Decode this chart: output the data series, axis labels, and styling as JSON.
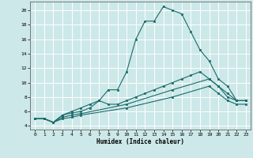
{
  "xlabel": "Humidex (Indice chaleur)",
  "background_color": "#cde8e8",
  "grid_color": "#ffffff",
  "line_color": "#1a6b6b",
  "xlim": [
    -0.5,
    23.5
  ],
  "ylim": [
    3.5,
    21.2
  ],
  "yticks": [
    4,
    6,
    8,
    10,
    12,
    14,
    16,
    18,
    20
  ],
  "xticks": [
    0,
    1,
    2,
    3,
    4,
    5,
    6,
    7,
    8,
    9,
    10,
    11,
    12,
    13,
    14,
    15,
    16,
    17,
    18,
    19,
    20,
    21,
    22,
    23
  ],
  "lines": [
    {
      "x": [
        0,
        1,
        2,
        3,
        4,
        5,
        6,
        7,
        8,
        9,
        10,
        11,
        12,
        13,
        14,
        15,
        16,
        17,
        18,
        19,
        20,
        21,
        22,
        23
      ],
      "y": [
        5.0,
        5.0,
        4.5,
        5.5,
        6.0,
        6.5,
        7.0,
        7.5,
        9.0,
        9.0,
        11.5,
        16.0,
        18.5,
        18.5,
        20.5,
        20.0,
        19.5,
        17.0,
        14.5,
        13.0,
        10.5,
        9.5,
        7.5,
        7.5
      ]
    },
    {
      "x": [
        0,
        1,
        2,
        3,
        4,
        5,
        6,
        7,
        8,
        9,
        10,
        11,
        12,
        13,
        14,
        15,
        16,
        17,
        18,
        19,
        20,
        21,
        22,
        23
      ],
      "y": [
        5.0,
        5.0,
        4.5,
        5.5,
        5.8,
        6.0,
        6.5,
        7.5,
        7.0,
        7.0,
        7.5,
        8.0,
        8.5,
        9.0,
        9.5,
        10.0,
        10.5,
        11.0,
        11.5,
        10.5,
        9.5,
        8.0,
        7.5,
        7.5
      ]
    },
    {
      "x": [
        0,
        1,
        2,
        3,
        4,
        5,
        10,
        15,
        19,
        20,
        21,
        22,
        23
      ],
      "y": [
        5.0,
        5.0,
        4.5,
        5.2,
        5.5,
        5.7,
        7.0,
        9.0,
        10.5,
        9.5,
        8.5,
        7.5,
        7.5
      ]
    },
    {
      "x": [
        0,
        1,
        2,
        3,
        4,
        5,
        10,
        15,
        19,
        20,
        21,
        22,
        23
      ],
      "y": [
        5.0,
        5.0,
        4.5,
        5.0,
        5.2,
        5.5,
        6.5,
        8.0,
        9.5,
        8.5,
        7.5,
        7.0,
        7.0
      ]
    }
  ]
}
